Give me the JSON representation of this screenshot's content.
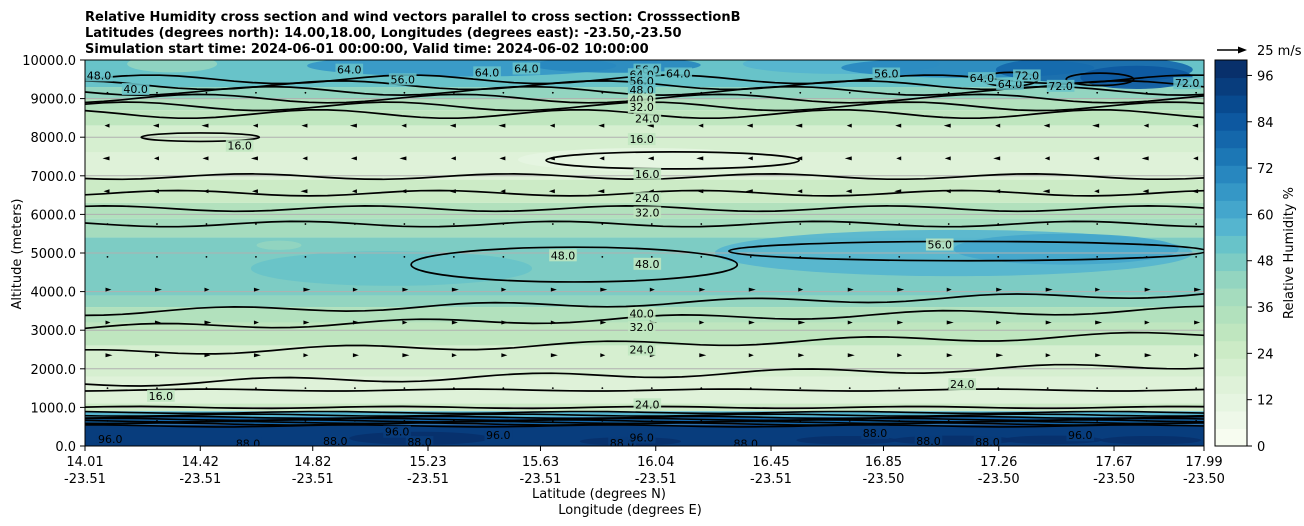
{
  "chart_data": {
    "type": "contourf-cross-section",
    "title_lines": [
      "Relative Humidity cross section and wind vectors parallel to cross section: CrosssectionB",
      "Latitudes (degrees north): 14.00,18.00, Longitudes (degrees east): -23.50,-23.50",
      "Simulation start time: 2024-06-01 00:00:00, Valid time: 2024-06-02 10:00:00"
    ],
    "ylabel": "Altitude (meters)",
    "xlabel_lat": "Latitude (degrees N)",
    "xlabel_lon": "Longitude (degrees E)",
    "ylim": [
      0,
      10000
    ],
    "yticks": [
      "0.0",
      "1000.0",
      "2000.0",
      "3000.0",
      "4000.0",
      "5000.0",
      "6000.0",
      "7000.0",
      "8000.0",
      "9000.0",
      "10000.0"
    ],
    "xticks_lat": [
      "14.01",
      "14.42",
      "14.82",
      "15.23",
      "15.63",
      "16.04",
      "16.45",
      "16.85",
      "17.26",
      "17.67",
      "17.99"
    ],
    "xticks_lon": [
      "-23.51",
      "-23.51",
      "-23.51",
      "-23.51",
      "-23.51",
      "-23.51",
      "-23.51",
      "-23.50",
      "-23.50",
      "-23.50",
      "-23.50"
    ],
    "colorbar": {
      "label": "Relative Humidity %",
      "range": [
        0,
        100
      ],
      "ticks": [
        "0",
        "12",
        "24",
        "36",
        "48",
        "60",
        "72",
        "84",
        "96"
      ],
      "colors": [
        "#f7fcf0",
        "#eef8e9",
        "#e6f5e1",
        "#dff2d9",
        "#d6efd0",
        "#ccebc6",
        "#bfe6bf",
        "#b2e1bd",
        "#a5dcbe",
        "#93d5c0",
        "#7dccc4",
        "#68c3c9",
        "#55b5cf",
        "#44a6cc",
        "#3597c6",
        "#2887bf",
        "#1c77b5",
        "#1467ab",
        "#0d58a0",
        "#084a8f",
        "#083d7d",
        "#08306b"
      ]
    },
    "quiver_key": "25 m/s",
    "contour_labels": [
      {
        "value": "48.0",
        "x": 14.06,
        "z": 9600
      },
      {
        "value": "40.0",
        "x": 14.19,
        "z": 9250
      },
      {
        "value": "64.0",
        "x": 14.95,
        "z": 9750
      },
      {
        "value": "56.0",
        "x": 15.14,
        "z": 9500
      },
      {
        "value": "64.0",
        "x": 15.44,
        "z": 9680
      },
      {
        "value": "64.0",
        "x": 15.58,
        "z": 9780
      },
      {
        "value": "56.0",
        "x": 16.01,
        "z": 9750
      },
      {
        "value": "64.0",
        "x": 15.99,
        "z": 9630
      },
      {
        "value": "64.0",
        "x": 16.12,
        "z": 9650
      },
      {
        "value": "56.0",
        "x": 15.99,
        "z": 9460
      },
      {
        "value": "48.0",
        "x": 15.99,
        "z": 9220
      },
      {
        "value": "40.0",
        "x": 15.99,
        "z": 8980
      },
      {
        "value": "32.0",
        "x": 15.99,
        "z": 8780
      },
      {
        "value": "24.0",
        "x": 16.01,
        "z": 8480
      },
      {
        "value": "56.0",
        "x": 16.86,
        "z": 9650
      },
      {
        "value": "64.0",
        "x": 17.2,
        "z": 9530
      },
      {
        "value": "64.0",
        "x": 17.3,
        "z": 9380
      },
      {
        "value": "72.0",
        "x": 17.36,
        "z": 9600
      },
      {
        "value": "72.0",
        "x": 17.48,
        "z": 9330
      },
      {
        "value": "72.0",
        "x": 17.93,
        "z": 9400
      },
      {
        "value": "16.0",
        "x": 14.56,
        "z": 7780
      },
      {
        "value": "16.0",
        "x": 15.99,
        "z": 7950
      },
      {
        "value": "16.0",
        "x": 16.01,
        "z": 7050
      },
      {
        "value": "24.0",
        "x": 16.01,
        "z": 6420
      },
      {
        "value": "32.0",
        "x": 16.01,
        "z": 6050
      },
      {
        "value": "48.0",
        "x": 15.71,
        "z": 4940
      },
      {
        "value": "48.0",
        "x": 16.01,
        "z": 4720
      },
      {
        "value": "56.0",
        "x": 17.05,
        "z": 5220
      },
      {
        "value": "40.0",
        "x": 15.99,
        "z": 3430
      },
      {
        "value": "32.0",
        "x": 15.99,
        "z": 3080
      },
      {
        "value": "24.0",
        "x": 15.99,
        "z": 2500
      },
      {
        "value": "16.0",
        "x": 14.28,
        "z": 1300
      },
      {
        "value": "24.0",
        "x": 17.13,
        "z": 1600
      },
      {
        "value": "24.0",
        "x": 16.01,
        "z": 1080
      },
      {
        "value": "96.0",
        "x": 14.1,
        "z": 180
      },
      {
        "value": "88.0",
        "x": 14.59,
        "z": 70
      },
      {
        "value": "88.0",
        "x": 14.9,
        "z": 130
      },
      {
        "value": "96.0",
        "x": 15.12,
        "z": 370
      },
      {
        "value": "88.0",
        "x": 15.2,
        "z": 100
      },
      {
        "value": "96.0",
        "x": 15.48,
        "z": 290
      },
      {
        "value": "88.0",
        "x": 15.92,
        "z": 80
      },
      {
        "value": "96.0",
        "x": 15.99,
        "z": 220
      },
      {
        "value": "88.0",
        "x": 16.36,
        "z": 60
      },
      {
        "value": "88.0",
        "x": 16.82,
        "z": 340
      },
      {
        "value": "88.0",
        "x": 17.01,
        "z": 130
      },
      {
        "value": "88.0",
        "x": 17.22,
        "z": 100
      },
      {
        "value": "96.0",
        "x": 17.55,
        "z": 280
      }
    ]
  }
}
